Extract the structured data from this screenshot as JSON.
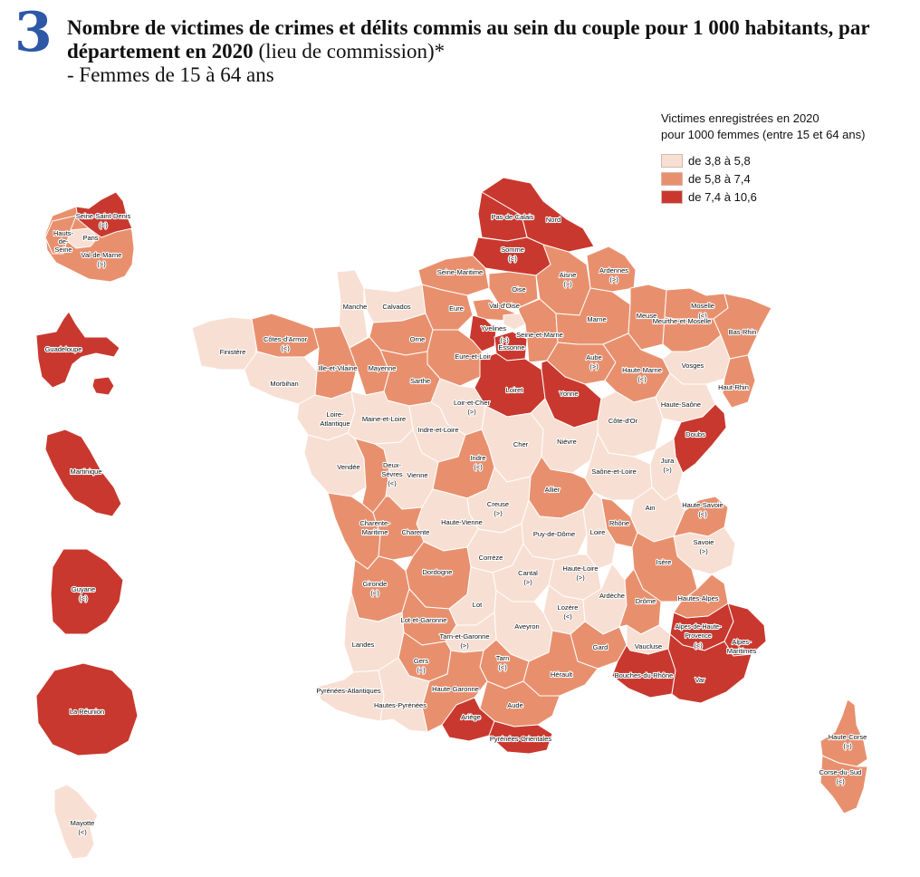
{
  "figure_number": "3",
  "title": {
    "bold": "Nombre de victimes de crimes et délits commis au sein du couple pour 1 000 habitants, par département en 2020",
    "normal": " (lieu de commission)*",
    "subtitle": "- Femmes de 15 à 64 ans"
  },
  "legend": {
    "title_line1": "Victimes enregistrées en 2020",
    "title_line2": "pour 1000 femmes (entre 15 et 64 ans)",
    "classes": [
      {
        "label": "de 3,8 à 5,8",
        "color": "#f8dfd3"
      },
      {
        "label": "de 5,8 à 7,4",
        "color": "#e8906e"
      },
      {
        "label": "de 7,4 à 10,6",
        "color": "#c9382e"
      }
    ]
  },
  "regions": {
    "idf": [
      "Seine-Saint-Denis",
      "Hauts-de-Seine",
      "Paris",
      "Val-de-Marne"
    ],
    "overseas": [
      "Guadeloupe",
      "Martinique",
      "Guyane",
      "La Réunion",
      "Mayotte"
    ],
    "corsica": [
      "Haute-Corse",
      "Corse-du-Sud"
    ]
  },
  "labels": {
    "nord": "Nord",
    "pas_de_calais": "Pas-de-Calais",
    "somme": "Somme",
    "seine_maritime": "Seine-Maritime",
    "oise": "Oise",
    "aisne": "Aisne",
    "ardennes": "Ardennes",
    "manche": "Manche",
    "calvados": "Calvados",
    "eure": "Eure",
    "val_d_oise": "Val-d'Oise",
    "yvelines": "Yvelines",
    "marne": "Marne",
    "meuse": "Meuse",
    "moselle": "Moselle",
    "bas_rhin": "Bas-Rhin",
    "meurthe_et_moselle": "Meurthe-et-Moselle",
    "seine_et_marne": "Seine-et-Marne",
    "essonne": "Essonne",
    "finistere": "Finistère",
    "cotes_d_armor": "Côtes-d'Armor",
    "orne": "Orne",
    "eure_et_loir": "Eure-et-Loir",
    "aube": "Aube",
    "haute_marne": "Haute-Marne",
    "vosges": "Vosges",
    "haut_rhin": "Haut-Rhin",
    "morbihan": "Morbihan",
    "ille_et_vilaine": "Ille-et-Vilaine",
    "mayenne": "Mayenne",
    "sarthe": "Sarthe",
    "loiret": "Loiret",
    "yonne": "Yonne",
    "loir_et_cher": "Loir-et-Cher",
    "haute_saone": "Haute-Saône",
    "loire_atlantique": "Loire-Atlantique",
    "maine_et_loire": "Maine-et-Loire",
    "indre_et_loire": "Indre-et-Loire",
    "cote_d_or": "Côte-d'Or",
    "cher": "Cher",
    "nievre": "Nièvre",
    "doubs": "Doubs",
    "vendee": "Vendée",
    "deux_sevres": "Deux-Sèvres",
    "vienne": "Vienne",
    "indre": "Indre",
    "saone_et_loire": "Saône-et-Loire",
    "jura": "Jura",
    "allier": "Allier",
    "creuse": "Creuse",
    "haute_vienne": "Haute-Vienne",
    "ain": "Ain",
    "haute_savoie": "Haute-Savoie",
    "charente_maritime": "Charente-Maritime",
    "charente": "Charente",
    "rhone": "Rhône",
    "puy_de_dome": "Puy-de-Dôme",
    "loire": "Loire",
    "savoie": "Savoie",
    "correze": "Corrèze",
    "dordogne": "Dordogne",
    "gironde": "Gironde",
    "cantal": "Cantal",
    "haute_loire": "Haute-Loire",
    "isere": "Isère",
    "lot": "Lot",
    "lozere": "Lozère",
    "ardeche": "Ardèche",
    "drome": "Drôme",
    "hautes_alpes": "Hautes-Alpes",
    "lot_et_garonne": "Lot-et-Garonne",
    "aveyron": "Aveyron",
    "alpes_haute_provence": "Alpes-de-Haute-Provence",
    "landes": "Landes",
    "tarn_et_garonne": "Tarn-et-Garonne",
    "gard": "Gard",
    "vaucluse": "Vaucluse",
    "alpes_maritimes": "Alpes-Maritimes",
    "gers": "Gers",
    "tarn": "Tarn",
    "herault": "Hérault",
    "bouches_du_rhone": "Bouches-du-Rhône",
    "var": "Var",
    "haute_garonne": "Haute-Garonne",
    "pyrenees_atlantiques": "Pyrénées-Atlantiques",
    "hautes_pyrenees": "Hautes-Pyrénées",
    "aude": "Aude",
    "ariege": "Ariège",
    "pyrenees_orientales": "Pyrénées-Orientales"
  },
  "marks": {
    "gt": "(>)",
    "lt": "(<)"
  }
}
